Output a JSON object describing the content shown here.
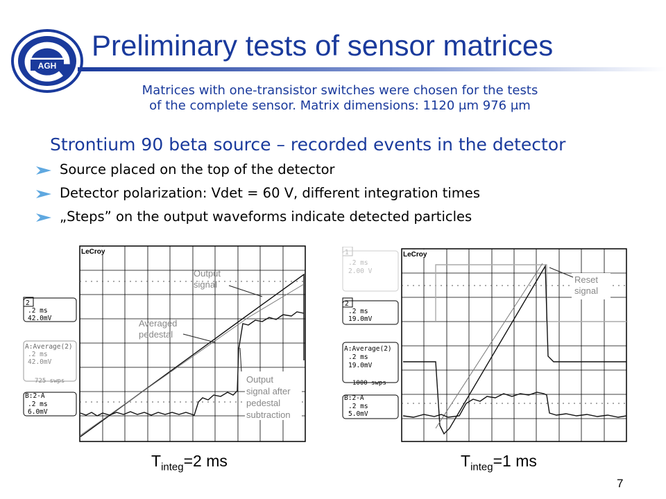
{
  "slide": {
    "title": "Preliminary tests of sensor matrices",
    "subtitle_line1": "Matrices with one-transistor switches were chosen for the tests",
    "subtitle_line2": "of the complete sensor. Matrix dimensions: 1120 μm 976 μm",
    "section_heading": "Strontium 90 beta source – recorded events in the detector",
    "bullets": [
      "Source placed on the top of the detector",
      "Detector polarization: Vdet = 60 V, different integration times",
      "„Steps” on the output waveforms indicate detected particles"
    ],
    "logo_text": "AGH",
    "page_number": "7",
    "colors": {
      "title": "#1a3a9c",
      "bullet_arrow": "#5fa8e0"
    }
  },
  "scope_left": {
    "brand": "LeCroy",
    "ch2_label": "2",
    "ch2_time": ".2 ms",
    "ch2_volt": "42.0mV",
    "avg_label": "A:Average(2)",
    "avg_time": ".2 ms",
    "avg_volt": "42.0mV",
    "avg_sweeps": "725 swps",
    "diff_label": "B:2-A",
    "diff_time": ".2 ms",
    "diff_volt": "6.0mV",
    "ann_output": [
      "Output",
      "signal"
    ],
    "ann_pedestal": [
      "Averaged",
      "pedestal"
    ],
    "ann_subtracted": [
      "Output",
      "signal after",
      "pedestal",
      "subtraction"
    ],
    "caption_T": "T",
    "caption_sub": "integ",
    "caption_rest": "=2 ms"
  },
  "scope_right": {
    "brand": "LeCroy",
    "ch1_label": "1",
    "ch1_time": ".2 ms",
    "ch1_volt": "2.00 V",
    "ch2_label": "2",
    "ch2_time": ".2 ms",
    "ch2_volt": "19.0mV",
    "avg_label": "A:Average(2)",
    "avg_time": ".2 ms",
    "avg_volt": "19.0mV",
    "avg_sweeps": "1000 swps",
    "diff_label": "B:2-A",
    "diff_time": ".2 ms",
    "diff_volt": "5.0mV",
    "ann_reset": [
      "Reset",
      "signal"
    ],
    "caption_T": "T",
    "caption_sub": "integ",
    "caption_rest": "=1 ms"
  }
}
